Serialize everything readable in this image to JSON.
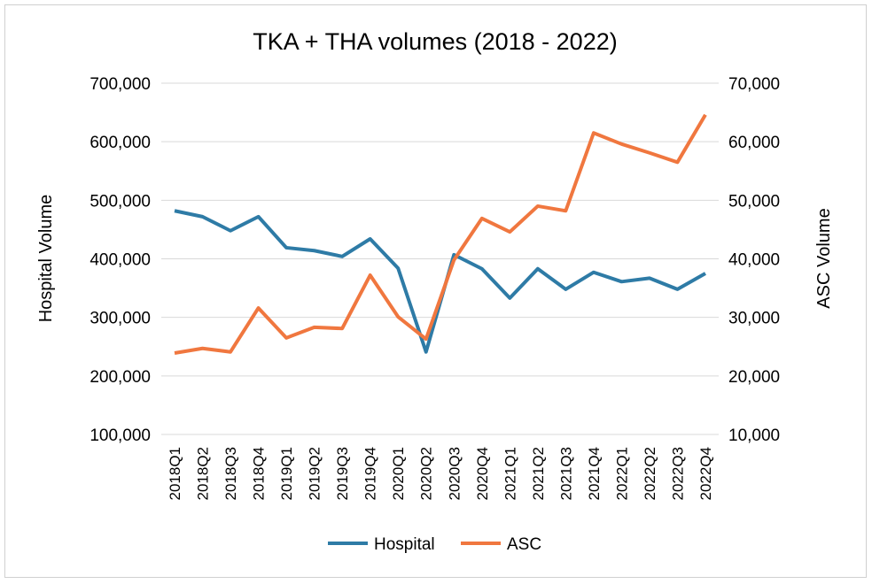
{
  "chart_data": {
    "type": "line",
    "title": "TKA + THA volumes (2018 - 2022)",
    "ylabel": "Hospital Volume",
    "y2label": "ASC Volume",
    "ylim": [
      100000,
      700000
    ],
    "y2lim": [
      10000,
      70000
    ],
    "yticks": [
      "100,000",
      "200,000",
      "300,000",
      "400,000",
      "500,000",
      "600,000",
      "700,000"
    ],
    "y2ticks": [
      "10,000",
      "20,000",
      "30,000",
      "40,000",
      "50,000",
      "60,000",
      "70,000"
    ],
    "grid": true,
    "legend": "bottom",
    "categories": [
      "2018Q1",
      "2018Q2",
      "2018Q3",
      "2018Q4",
      "2019Q1",
      "2019Q2",
      "2019Q3",
      "2019Q4",
      "2020Q1",
      "2020Q2",
      "2020Q3",
      "2020Q4",
      "2021Q1",
      "2021Q2",
      "2021Q3",
      "2021Q4",
      "2022Q1",
      "2022Q2",
      "2022Q3",
      "2022Q4"
    ],
    "series": [
      {
        "name": "Hospital",
        "axis": "left",
        "color": "#2E7BA6",
        "values": [
          482000,
          472000,
          448000,
          472000,
          419000,
          414000,
          404000,
          434000,
          384000,
          241000,
          407000,
          383000,
          333000,
          383000,
          348000,
          377000,
          361000,
          367000,
          348000,
          375000
        ]
      },
      {
        "name": "ASC",
        "axis": "right",
        "color": "#F0773F",
        "values": [
          23900,
          24700,
          24100,
          31600,
          26500,
          28300,
          28100,
          37200,
          30100,
          26300,
          39800,
          46900,
          44600,
          49000,
          48200,
          61500,
          59600,
          58100,
          56500,
          64600
        ]
      }
    ]
  }
}
